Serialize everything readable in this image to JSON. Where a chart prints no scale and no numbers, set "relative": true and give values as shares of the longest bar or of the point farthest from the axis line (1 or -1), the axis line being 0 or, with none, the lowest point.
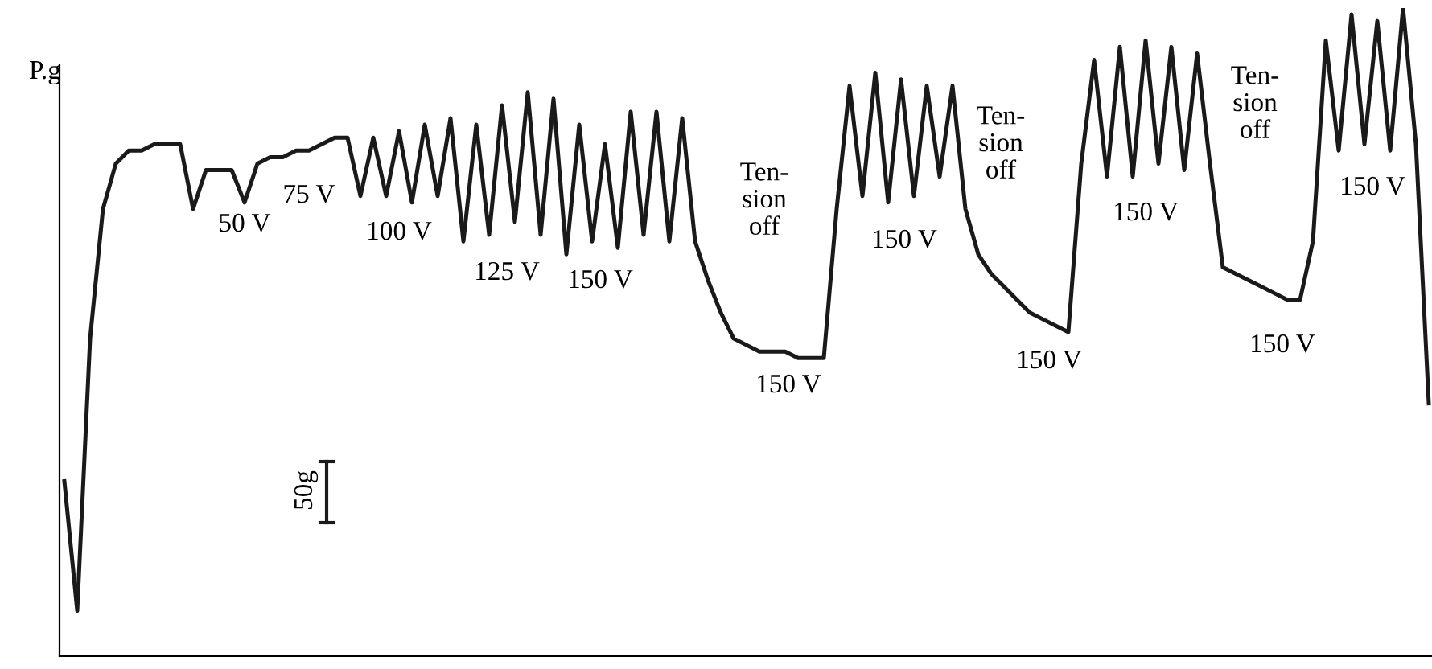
{
  "chart_data": {
    "type": "line",
    "relative": true,
    "ylabel": "P.g",
    "marker": "none",
    "line_style": "solid",
    "grid": false,
    "legend": false,
    "categories": [
      null,
      null,
      null,
      null,
      null,
      null,
      null,
      null,
      null,
      null,
      null,
      null,
      null,
      null,
      null,
      null,
      null,
      null,
      null,
      null,
      null,
      null,
      null,
      null,
      null,
      null,
      null,
      null,
      null,
      null,
      null,
      null,
      null,
      null,
      null,
      null,
      null,
      null,
      null,
      null,
      null,
      null,
      null,
      null,
      null,
      null,
      null,
      null,
      null,
      null,
      null,
      null,
      null,
      null,
      null,
      null,
      null,
      null,
      null,
      null,
      null,
      null,
      null,
      null,
      null,
      null,
      null,
      null,
      null,
      null,
      null,
      null,
      null,
      null,
      null,
      null,
      null,
      null,
      null,
      null,
      null,
      null,
      null,
      null,
      null,
      null,
      null,
      null,
      null,
      null,
      null,
      null,
      null,
      null,
      null,
      null,
      null,
      null,
      null,
      null,
      null,
      null,
      null,
      null,
      null,
      null,
      null
    ],
    "series": [
      {
        "color": "#1a1a1a",
        "values": [
          0.27,
          0.07,
          0.49,
          0.69,
          0.76,
          0.78,
          0.78,
          0.79,
          0.79,
          0.79,
          0.69,
          0.75,
          0.75,
          0.75,
          0.7,
          0.76,
          0.77,
          0.77,
          0.78,
          0.78,
          0.79,
          0.8,
          0.8,
          0.71,
          0.8,
          0.71,
          0.81,
          0.7,
          0.82,
          0.71,
          0.83,
          0.64,
          0.82,
          0.65,
          0.85,
          0.67,
          0.87,
          0.65,
          0.86,
          0.62,
          0.82,
          0.64,
          0.79,
          0.63,
          0.84,
          0.65,
          0.84,
          0.64,
          0.83,
          0.64,
          0.58,
          0.53,
          0.49,
          0.48,
          0.47,
          0.47,
          0.47,
          0.46,
          0.46,
          0.46,
          0.69,
          0.88,
          0.71,
          0.9,
          0.7,
          0.89,
          0.71,
          0.88,
          0.74,
          0.88,
          0.69,
          0.62,
          0.59,
          0.57,
          0.55,
          0.53,
          0.52,
          0.51,
          0.5,
          0.76,
          0.92,
          0.74,
          0.94,
          0.74,
          0.95,
          0.76,
          0.94,
          0.75,
          0.93,
          0.76,
          0.6,
          0.59,
          0.58,
          0.57,
          0.56,
          0.55,
          0.55,
          0.64,
          0.95,
          0.78,
          0.99,
          0.79,
          0.98,
          0.78,
          1,
          0.79,
          0.39
        ]
      }
    ],
    "annotations": [
      "50 V",
      "75 V",
      "100 V",
      "125 V",
      "150 V",
      "Ten-\nsion\noff",
      "150 V",
      "150 V",
      "Ten-\nsion\noff",
      "150 V",
      "150 V",
      "Ten-\nsion\noff",
      "150 V",
      "150 V",
      "50g"
    ]
  }
}
